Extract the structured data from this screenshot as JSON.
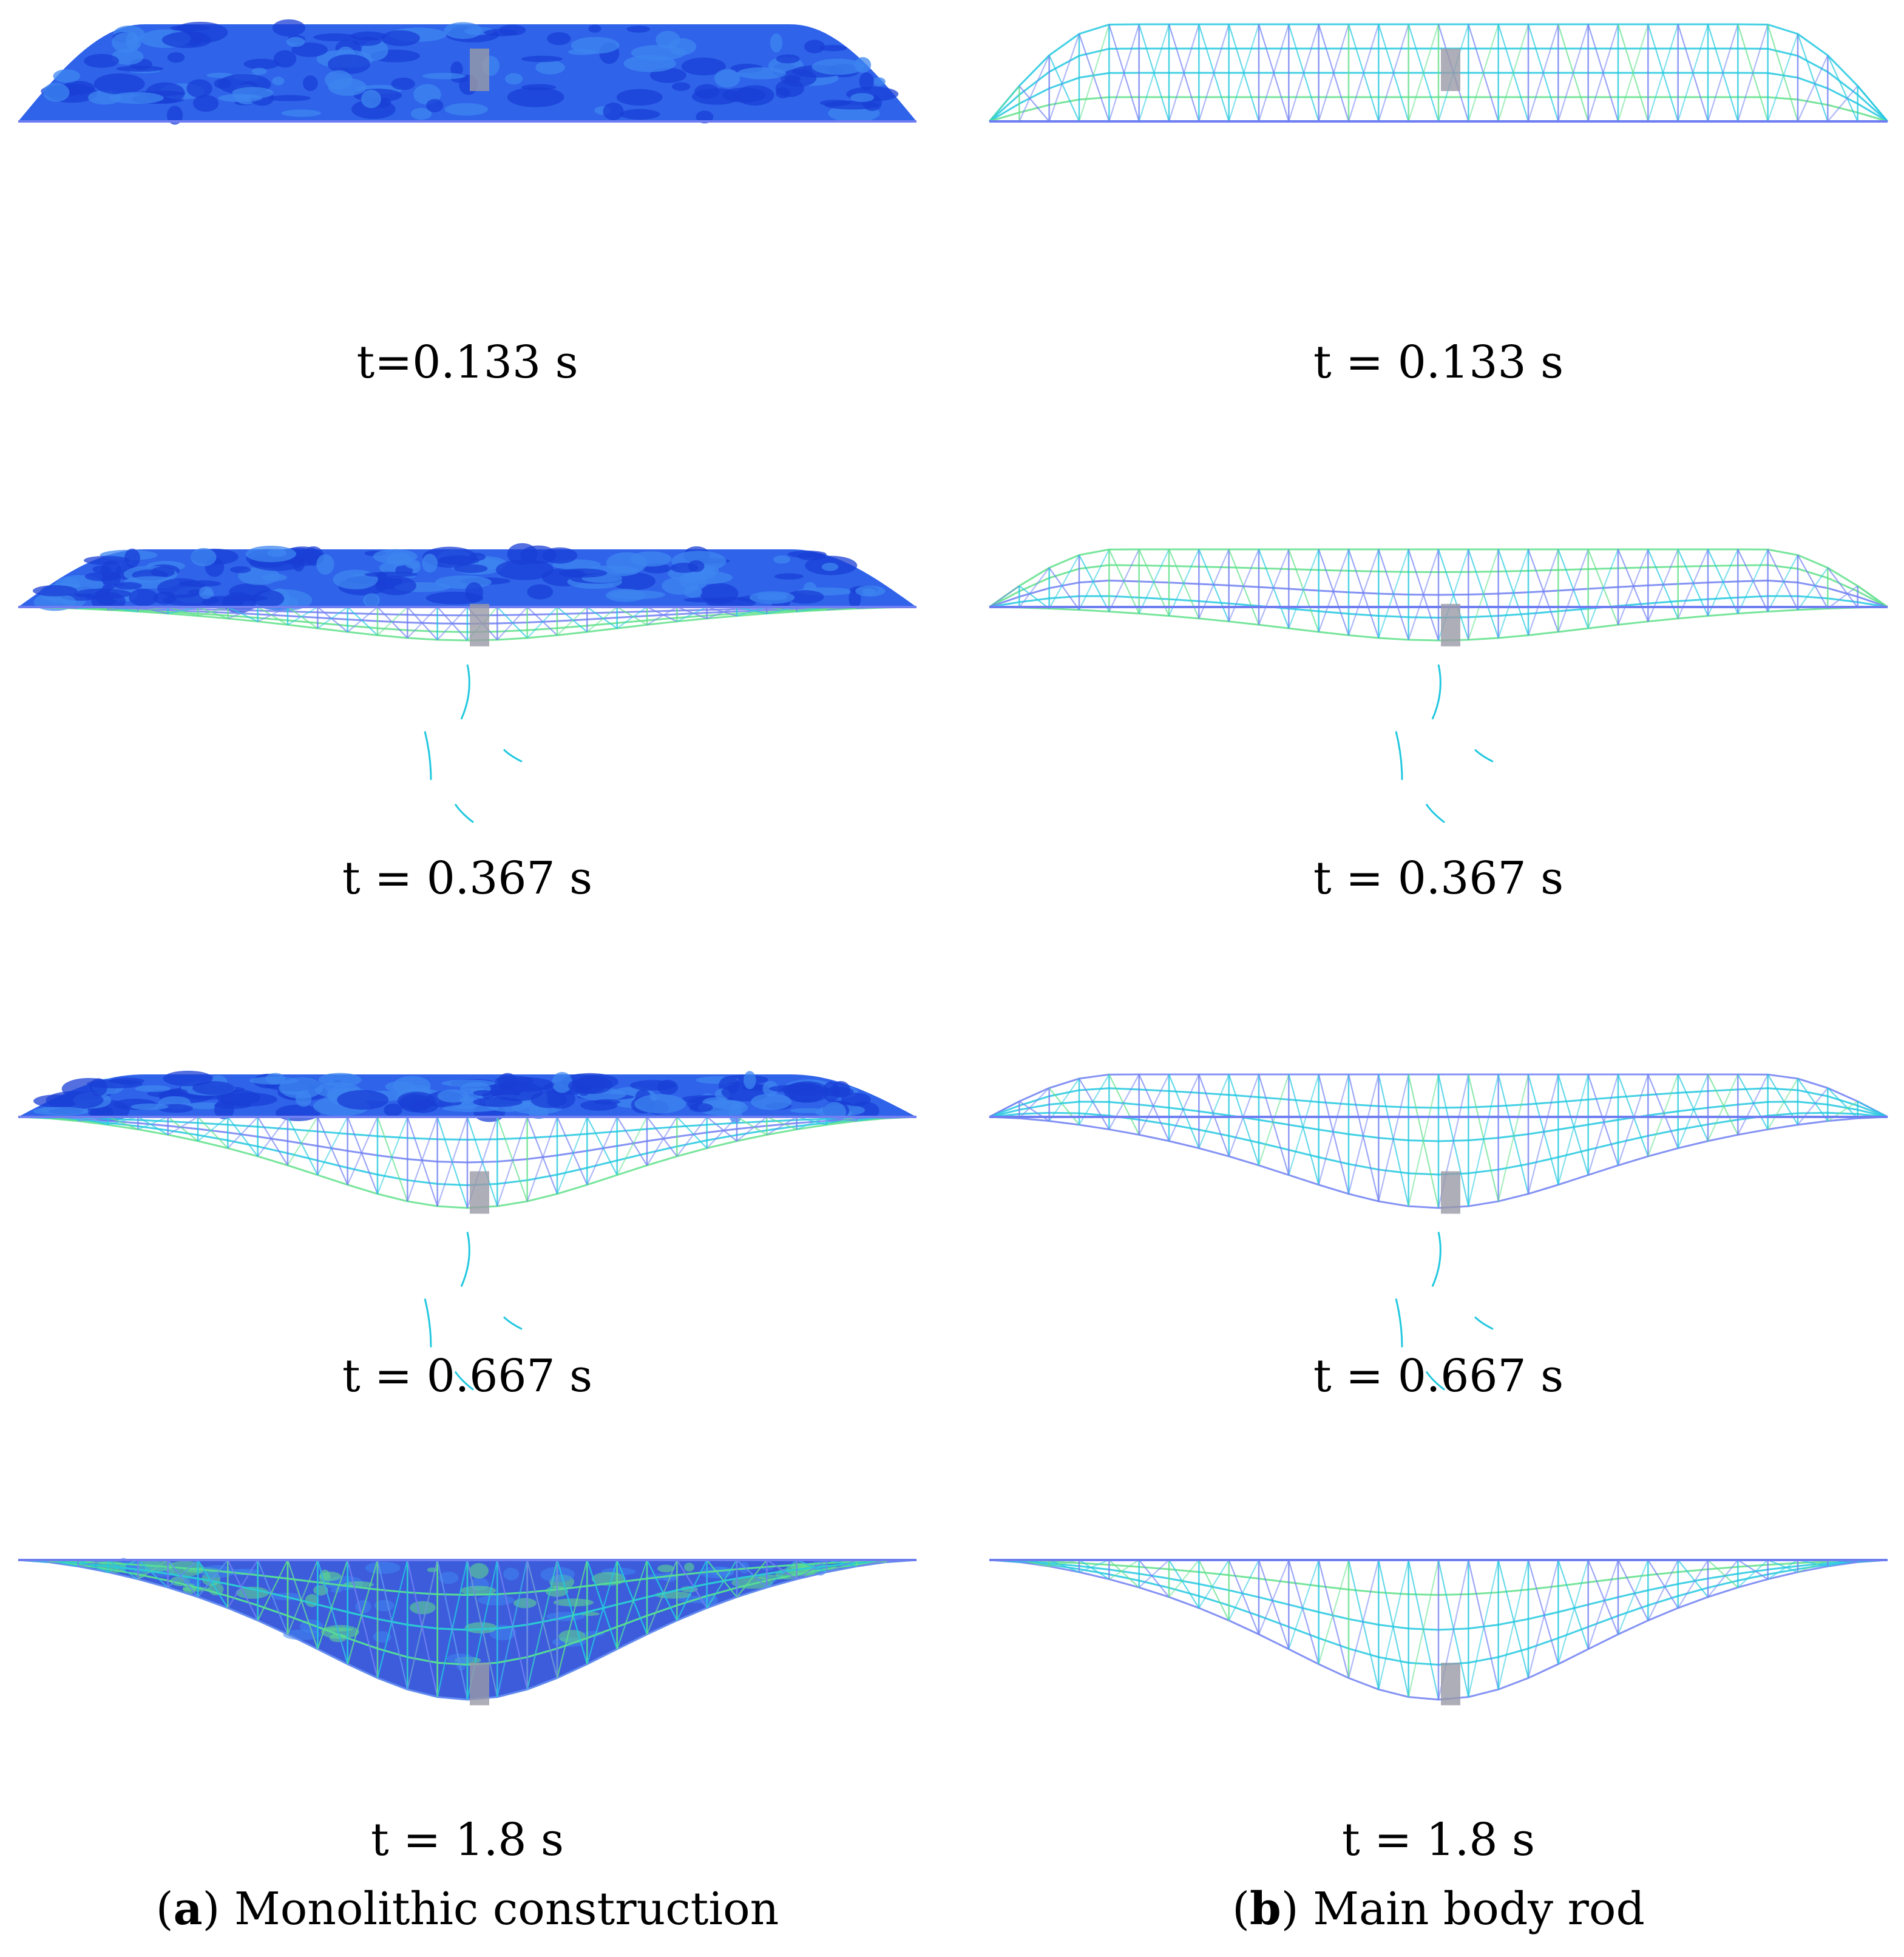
{
  "columns": [
    {
      "key": "a",
      "caption_letter": "a",
      "caption_text": "Monolithic construction",
      "style": "solid",
      "time_labels": [
        "t=0.133 s",
        "t = 0.367 s",
        "t = 0.667 s",
        "t = 1.8 s"
      ]
    },
    {
      "key": "b",
      "caption_letter": "b",
      "caption_text": "Main body rod",
      "style": "wireframe",
      "time_labels": [
        "t = 0.133 s",
        "t = 0.367 s",
        "t = 0.667 s",
        "t = 1.8 s"
      ]
    }
  ],
  "colors": {
    "shell_dark": "#1a3fd6",
    "shell_mid": "#2f63ea",
    "shell_light": "#3e86f0",
    "wire_blue": "#6f7ff2",
    "wire_cyan": "#22c8e0",
    "wire_green": "#5fe08a",
    "column_grey": "#9a9aa6"
  }
}
